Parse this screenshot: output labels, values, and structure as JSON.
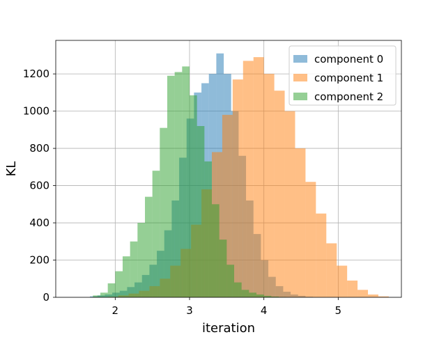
{
  "chart_data": {
    "type": "bar",
    "subtype": "overlapping-histogram",
    "xlabel": "iteration",
    "ylabel": "KL",
    "xlim": [
      1.2,
      5.85
    ],
    "ylim": [
      0,
      1380
    ],
    "xticks": [
      2,
      3,
      4,
      5
    ],
    "yticks": [
      0,
      200,
      400,
      600,
      800,
      1000,
      1200
    ],
    "grid": true,
    "legend_position": "top-right",
    "bar_opacity": 0.5,
    "series": [
      {
        "name": "component 0",
        "color": "#1f77b4",
        "bin_edges": [
          1.66,
          1.76,
          1.86,
          1.96,
          2.06,
          2.16,
          2.26,
          2.36,
          2.46,
          2.56,
          2.66,
          2.76,
          2.86,
          2.96,
          3.06,
          3.16,
          3.26,
          3.36,
          3.46,
          3.56,
          3.66,
          3.76,
          3.86,
          3.96,
          4.06,
          4.16,
          4.26,
          4.36,
          4.46,
          4.56,
          4.66
        ],
        "counts": [
          5,
          10,
          15,
          25,
          35,
          55,
          80,
          120,
          175,
          250,
          360,
          520,
          750,
          960,
          1100,
          1150,
          1200,
          1310,
          1200,
          1000,
          760,
          520,
          340,
          200,
          110,
          60,
          30,
          15,
          8,
          3
        ]
      },
      {
        "name": "component 1",
        "color": "#ff7f0e",
        "bin_edges": [
          1.9,
          2.04,
          2.18,
          2.32,
          2.46,
          2.6,
          2.74,
          2.88,
          3.02,
          3.16,
          3.3,
          3.44,
          3.58,
          3.72,
          3.86,
          4.0,
          4.14,
          4.28,
          4.42,
          4.56,
          4.7,
          4.84,
          4.98,
          5.12,
          5.26,
          5.4,
          5.54,
          5.68
        ],
        "counts": [
          3,
          10,
          20,
          35,
          60,
          100,
          170,
          260,
          390,
          580,
          780,
          980,
          1170,
          1270,
          1290,
          1200,
          1110,
          1000,
          800,
          620,
          450,
          290,
          170,
          90,
          40,
          15,
          5
        ]
      },
      {
        "name": "component 2",
        "color": "#2ca02c",
        "bin_edges": [
          1.7,
          1.8,
          1.9,
          2.0,
          2.1,
          2.2,
          2.3,
          2.4,
          2.5,
          2.6,
          2.7,
          2.8,
          2.9,
          3.0,
          3.1,
          3.2,
          3.3,
          3.4,
          3.5,
          3.6,
          3.7,
          3.8,
          3.9,
          4.0,
          4.1,
          4.2,
          4.3
        ],
        "counts": [
          10,
          25,
          75,
          140,
          220,
          300,
          400,
          540,
          680,
          910,
          1190,
          1210,
          1240,
          1085,
          920,
          730,
          500,
          310,
          175,
          80,
          40,
          25,
          15,
          8,
          4,
          2
        ]
      }
    ]
  }
}
